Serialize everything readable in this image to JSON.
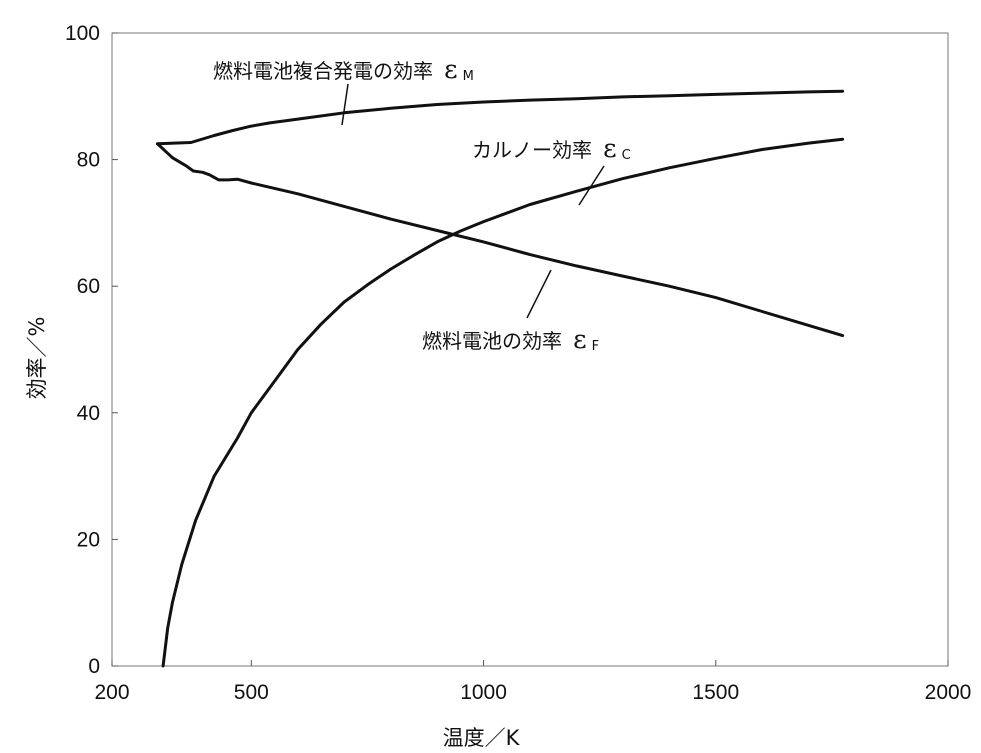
{
  "chart_data": {
    "type": "line",
    "title": "",
    "xlabel": "温度／K",
    "ylabel": "効率／%",
    "xlim": [
      200,
      2000
    ],
    "ylim": [
      0,
      100
    ],
    "x_ticks": [
      "200",
      "500",
      "1000",
      "1500",
      "2000"
    ],
    "y_ticks": [
      "0",
      "20",
      "40",
      "60",
      "80",
      "100"
    ],
    "grid": false,
    "series": [
      {
        "name": "燃料電池複合発電の効率",
        "symbol": "ε",
        "subscript": "M",
        "points": [
          [
            298,
            82.5
          ],
          [
            370,
            82.7
          ],
          [
            420,
            83.8
          ],
          [
            460,
            84.6
          ],
          [
            500,
            85.3
          ],
          [
            540,
            85.8
          ],
          [
            600,
            86.4
          ],
          [
            700,
            87.4
          ],
          [
            800,
            88.1
          ],
          [
            900,
            88.7
          ],
          [
            1000,
            89.1
          ],
          [
            1100,
            89.4
          ],
          [
            1200,
            89.6
          ],
          [
            1300,
            89.9
          ],
          [
            1400,
            90.1
          ],
          [
            1500,
            90.3
          ],
          [
            1600,
            90.5
          ],
          [
            1700,
            90.7
          ],
          [
            1773,
            90.8
          ]
        ]
      },
      {
        "name": "カルノー効率",
        "symbol": "ε",
        "subscript": "C",
        "points": [
          [
            310,
            0
          ],
          [
            320,
            6
          ],
          [
            330,
            10
          ],
          [
            350,
            16
          ],
          [
            380,
            23
          ],
          [
            420,
            30
          ],
          [
            470,
            36
          ],
          [
            500,
            40
          ],
          [
            550,
            45
          ],
          [
            600,
            50
          ],
          [
            650,
            54
          ],
          [
            700,
            57.5
          ],
          [
            750,
            60.2
          ],
          [
            800,
            62.7
          ],
          [
            850,
            64.9
          ],
          [
            900,
            67
          ],
          [
            950,
            68.7
          ],
          [
            1000,
            70.2
          ],
          [
            1100,
            72.9
          ],
          [
            1200,
            75
          ],
          [
            1300,
            77
          ],
          [
            1400,
            78.7
          ],
          [
            1500,
            80.2
          ],
          [
            1600,
            81.6
          ],
          [
            1700,
            82.6
          ],
          [
            1773,
            83.2
          ]
        ]
      },
      {
        "name": "燃料電池の効率",
        "symbol": "ε",
        "subscript": "F",
        "points": [
          [
            298,
            82.5
          ],
          [
            330,
            80.3
          ],
          [
            360,
            79
          ],
          [
            375,
            78.2
          ],
          [
            395,
            78
          ],
          [
            410,
            77.6
          ],
          [
            430,
            76.8
          ],
          [
            450,
            76.8
          ],
          [
            470,
            76.9
          ],
          [
            500,
            76.3
          ],
          [
            600,
            74.6
          ],
          [
            700,
            72.6
          ],
          [
            800,
            70.6
          ],
          [
            900,
            68.8
          ],
          [
            1000,
            67
          ],
          [
            1100,
            65
          ],
          [
            1200,
            63.2
          ],
          [
            1300,
            61.6
          ],
          [
            1400,
            60
          ],
          [
            1500,
            58.2
          ],
          [
            1600,
            56
          ],
          [
            1700,
            53.8
          ],
          [
            1773,
            52.2
          ]
        ]
      }
    ]
  }
}
